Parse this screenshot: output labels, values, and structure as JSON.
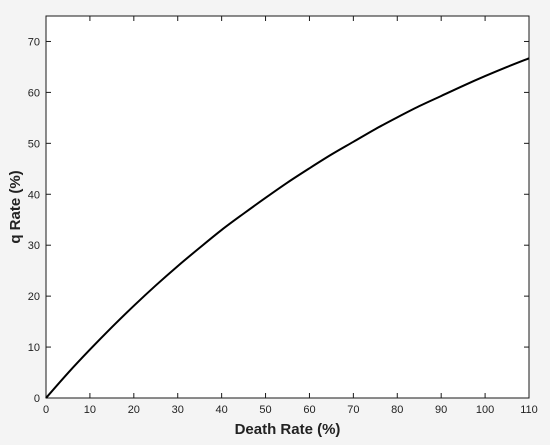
{
  "chart_data": {
    "type": "line",
    "title": "",
    "xlabel": "Death Rate (%)",
    "ylabel": "q Rate (%)",
    "xlim": [
      0,
      110
    ],
    "ylim": [
      0,
      75
    ],
    "xticks": [
      0,
      10,
      20,
      30,
      40,
      50,
      60,
      70,
      80,
      90,
      100,
      110
    ],
    "yticks": [
      0,
      10,
      20,
      30,
      40,
      50,
      60,
      70
    ],
    "grid": false,
    "series": [
      {
        "color": "#000000",
        "x": [
          0,
          5,
          10,
          15,
          20,
          25,
          30,
          35,
          40,
          45,
          50,
          55,
          60,
          65,
          70,
          75,
          80,
          85,
          90,
          95,
          100,
          105,
          110
        ],
        "y": [
          0,
          4.9,
          9.5,
          13.9,
          18.1,
          22.1,
          25.9,
          29.5,
          33.0,
          36.2,
          39.3,
          42.3,
          45.1,
          47.8,
          50.3,
          52.8,
          55.1,
          57.3,
          59.3,
          61.3,
          63.2,
          65.0,
          66.7
        ]
      }
    ]
  }
}
